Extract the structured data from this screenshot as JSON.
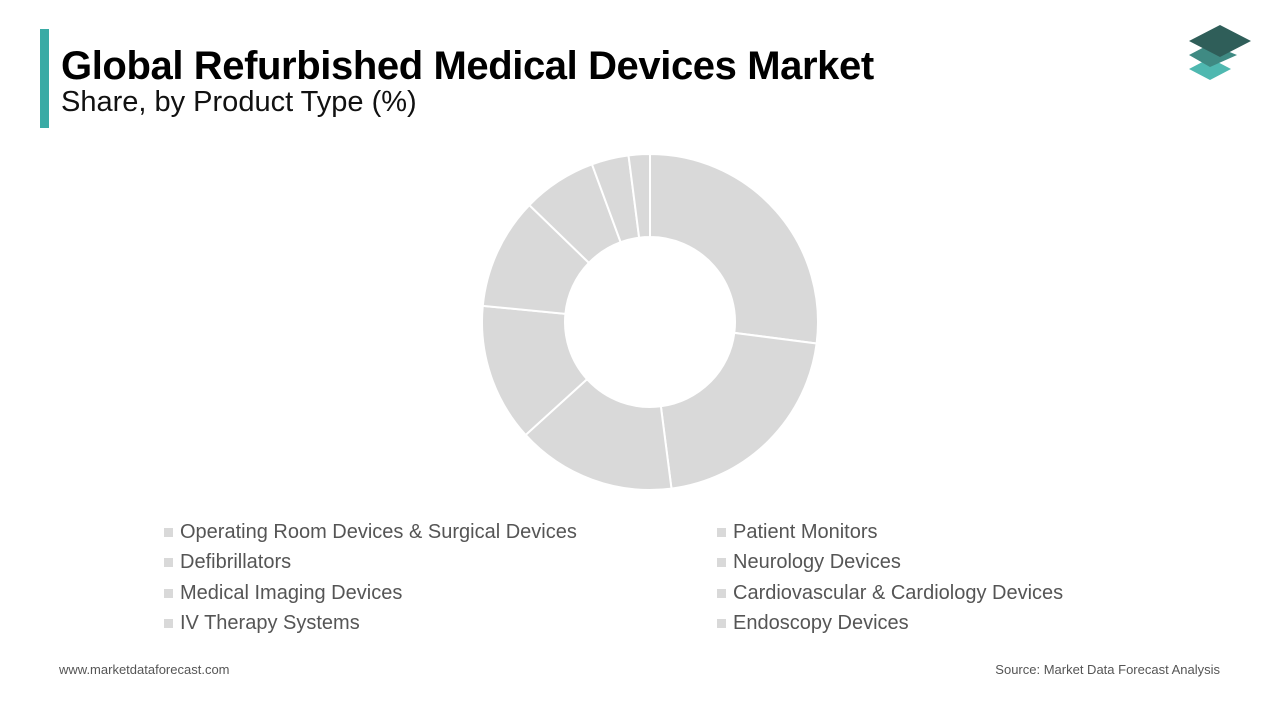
{
  "header": {
    "title": "Global Refurbished Medical Devices Market",
    "subtitle": "Share, by Product Type (%)"
  },
  "colors": {
    "accent": "#3aaba5",
    "slice": "#d9d9d9",
    "slice_border": "#ffffff",
    "legend_swatch": "#d9d9d9",
    "logo_dark": "#2f5e59",
    "logo_mid": "#3f8a83",
    "logo_light": "#4fb8b0"
  },
  "logo": {
    "icon": "stacked-layers-icon"
  },
  "chart_data": {
    "type": "pie",
    "title": "Global Refurbished Medical Devices Market",
    "subtitle": "Share, by Product Type (%)",
    "categories": [
      "Operating Room Devices & Surgical Devices",
      "Patient Monitors",
      "Defibrillators",
      "Neurology Devices",
      "Medical Imaging Devices",
      "Cardiovascular & Cardiology Devices",
      "IV Therapy Systems",
      "Endoscopy Devices"
    ],
    "values": [
      26.5,
      20.5,
      15.0,
      13.0,
      10.5,
      7.0,
      3.5,
      2.0
    ],
    "donut": true,
    "legend_position": "bottom"
  },
  "legend": {
    "items": [
      "Operating Room Devices & Surgical Devices",
      "Patient Monitors",
      "Defibrillators",
      "Neurology Devices",
      "Medical Imaging Devices",
      "Cardiovascular & Cardiology Devices",
      "IV Therapy Systems",
      "Endoscopy Devices"
    ]
  },
  "footer": {
    "website": "www.marketdataforecast.com",
    "source": "Source: Market Data Forecast Analysis"
  }
}
